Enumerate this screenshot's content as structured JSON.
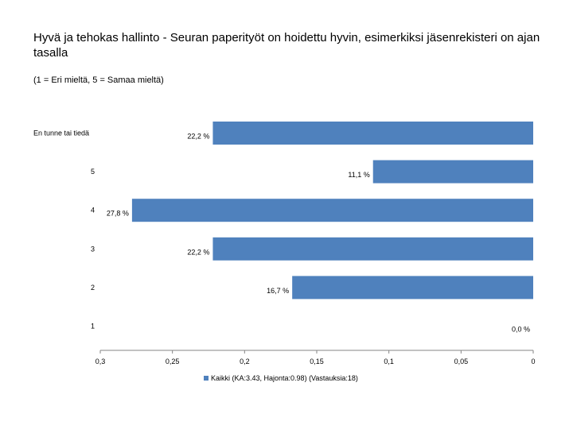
{
  "header": {
    "title": "Hyvä ja tehokas hallinto - Seuran paperityöt on hoidettu hyvin, esimerkiksi jäsenrekisteri on ajan tasalla",
    "subtitle": "(1 = Eri mieltä, 5 = Samaa mieltä)"
  },
  "chart_data": {
    "type": "bar",
    "orientation": "horizontal",
    "x_axis_reversed": true,
    "categories": [
      "En tunne tai tiedä",
      "5",
      "4",
      "3",
      "2",
      "1"
    ],
    "values": [
      0.222,
      0.111,
      0.278,
      0.222,
      0.167,
      0.0
    ],
    "value_labels": [
      "22,2 %",
      "11,1 %",
      "27,8 %",
      "22,2 %",
      "16,7 %",
      "0,0 %"
    ],
    "xlim": [
      0,
      0.3
    ],
    "x_ticks": [
      0.3,
      0.25,
      0.2,
      0.15,
      0.1,
      0.05,
      0
    ],
    "x_tick_labels": [
      "0,3",
      "0,25",
      "0,2",
      "0,15",
      "0,1",
      "0,05",
      "0"
    ],
    "series": [
      {
        "name": "Kaikki (KA:3.43, Hajonta:0.98) (Vastauksia:18)",
        "color": "#4F81BD"
      }
    ],
    "grid": false,
    "legend_position": "bottom"
  }
}
